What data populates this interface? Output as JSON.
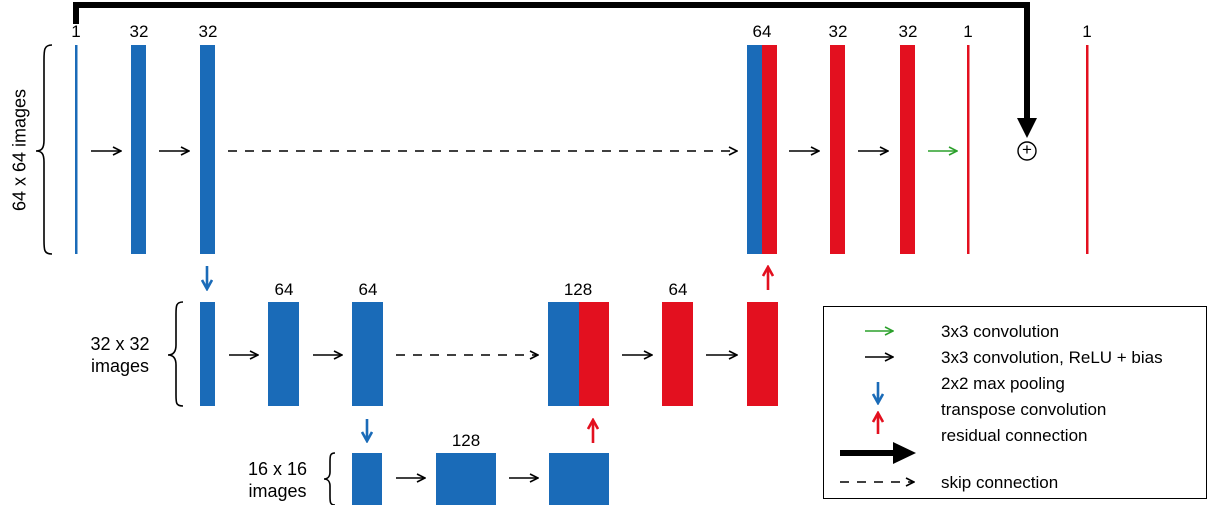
{
  "colors": {
    "blue": "#1a6bb8",
    "red": "#e3101f",
    "green": "#2ca02c",
    "black": "#000000"
  },
  "levels": [
    {
      "name": "64x64",
      "label": "64 x 64 images"
    },
    {
      "name": "32x32",
      "label_line1": "32 x 32",
      "label_line2": "images"
    },
    {
      "name": "16x16",
      "label_line1": "16 x 16",
      "label_line2": "images"
    }
  ],
  "channels": {
    "l1_input": "1",
    "l1_conv1": "32",
    "l1_conv2": "32",
    "l1_concat": "64",
    "l1_dec1": "32",
    "l1_dec2": "32",
    "l1_out": "1",
    "l1_final": "1",
    "l2_conv1": "64",
    "l2_conv2": "64",
    "l2_concat": "128",
    "l2_dec1": "64",
    "l3_conv": "128"
  },
  "residual_symbol": "+",
  "legend": [
    {
      "label": "3x3 convolution",
      "icon": "green-arrow-icon"
    },
    {
      "label": "3x3 convolution, ReLU + bias",
      "icon": "black-arrow-icon"
    },
    {
      "label": "2x2 max pooling",
      "icon": "blue-down-arrow-icon"
    },
    {
      "label": "transpose convolution",
      "icon": "red-up-arrow-icon"
    },
    {
      "label": "residual connection",
      "icon": "thick-arrow-icon"
    },
    {
      "label": "skip connection",
      "icon": "dashed-arrow-icon"
    }
  ]
}
